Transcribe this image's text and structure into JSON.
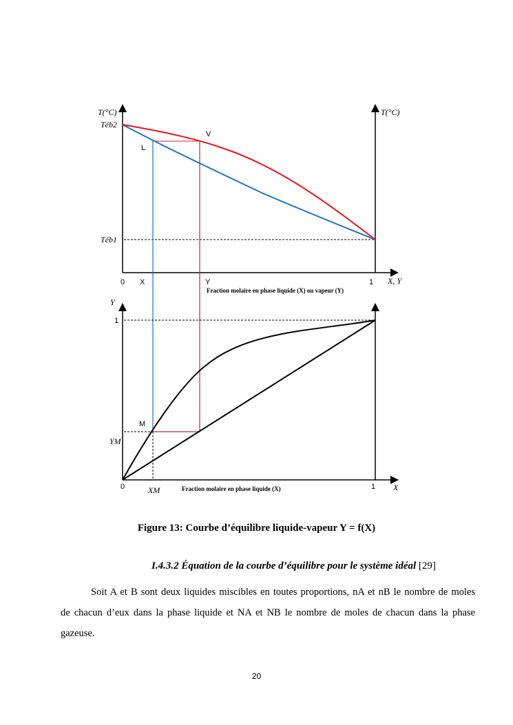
{
  "figure": {
    "top_chart": {
      "y_left_label": "T(°C)",
      "y_right_label": "T(°C)",
      "teb2": "Téb2",
      "teb1": "Téb1",
      "point_v": "V",
      "point_l": "L",
      "x0": "0",
      "x_mark": "X",
      "y_mark": "Y",
      "x1": "1",
      "x_axis_var": "X, Y",
      "x_axis_title": "Fraction molaire en phase liquide (X) ou vapeur (Y)",
      "curve_colors": {
        "vapor": "#e8141b",
        "liquid": "#1a73c7"
      }
    },
    "bottom_chart": {
      "y_label": "Y",
      "y1": "1",
      "y_m": "YM",
      "point_m": "M",
      "x0": "0",
      "x_m": "XM",
      "x1": "1",
      "x_axis_var": "X",
      "x_axis_title": "Fraction molaire en phase liquide (X)"
    }
  },
  "caption": "Figure 13: Courbe d’équilibre liquide-vapeur  Y = f(X)",
  "heading": {
    "text": "I.4.3.2 Équation de la courbe d’équilibre pour le système idéal",
    "ref": "[29]"
  },
  "paragraph": {
    "line1": "Soit A et B sont deux liquides miscibles en toutes proportions, nA et nB le nombre de moles",
    "line2": "de chacun d’eux dans la phase liquide et NA et NB le nombre de moles de chacun dans la phase",
    "line3": "gazeuse."
  },
  "page_number": "20"
}
